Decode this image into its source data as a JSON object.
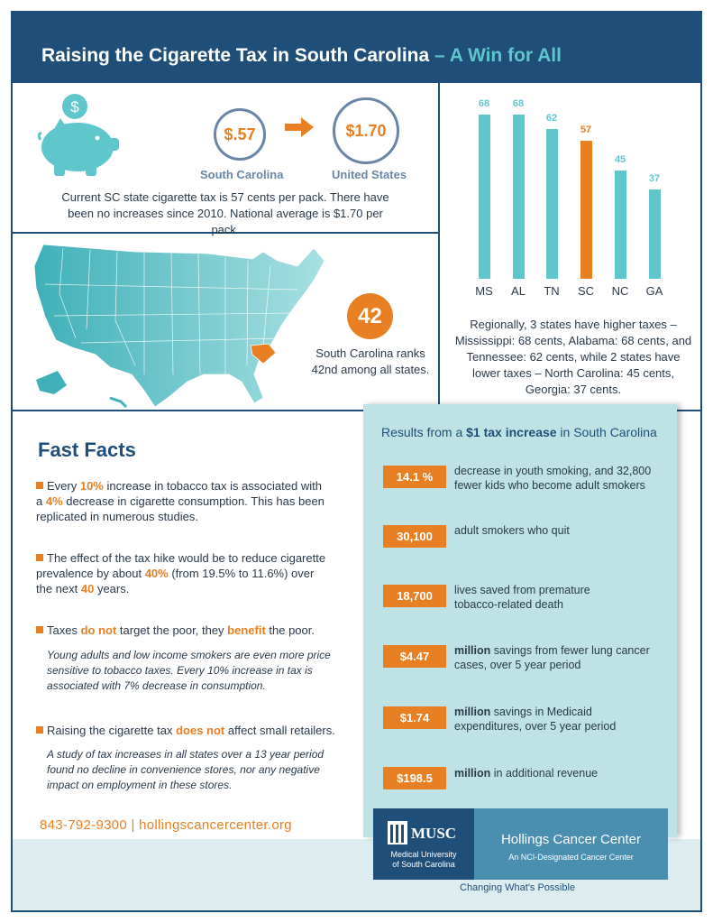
{
  "header": {
    "title": "Raising the Cigarette Tax in South Carolina",
    "title_accent": " – A Win for All"
  },
  "tax_compare": {
    "sc_value": "$.57",
    "sc_label": "South Carolina",
    "us_value": "$1.70",
    "us_label": "United States",
    "piggy_symbol": "$",
    "description": "Current SC state cigarette tax is 57 cents per pack.  There have been no increases since 2010. National average is $1.70 per pack."
  },
  "ranking": {
    "rank": "42",
    "text": "South Carolina ranks 42nd among all states."
  },
  "chart_data": {
    "type": "bar",
    "categories": [
      "MS",
      "AL",
      "TN",
      "SC",
      "NC",
      "GA"
    ],
    "values": [
      68,
      68,
      62,
      57,
      45,
      37
    ],
    "highlight": "SC",
    "colors": {
      "default": "#5fc6cc",
      "highlight": "#e87f22"
    }
  },
  "regional_note": "Regionally, 3 states have higher taxes – Mississippi: 68 cents, Alabama: 68 cents, and Tennessee: 62 cents, while 2 states have lower taxes – North Carolina: 45 cents, Georgia: 37 cents.",
  "fast_facts": {
    "title": "Fast Facts",
    "f1_a": "Every ",
    "f1_b": "10%",
    "f1_c": " increase in tobacco tax is associated with a ",
    "f1_d": "4%",
    "f1_e": " decrease in cigarette consumption.  This has been replicated in numerous studies.",
    "f2_a": "The effect of the tax hike would be to reduce cigarette prevalence by about ",
    "f2_b": "40%",
    "f2_c": " (from 19.5% to 11.6%) over the next ",
    "f2_d": "40",
    "f2_e": " years.",
    "f3_a": "Taxes ",
    "f3_b": "do not",
    "f3_c": " target the poor, they ",
    "f3_d": "benefit",
    "f3_e": " the poor.",
    "f3_note": "Young adults and low income smokers are even more price sensitive to tobacco taxes. Every 10% increase in tax is associated with 7% decrease in consumption.",
    "f4_a": "Raising the cigarette tax ",
    "f4_b": "does not",
    "f4_c": " affect small retailers.",
    "f4_note": "A study of tax increases in all states over a 13 year period found no decline in convenience stores, nor any negative impact on employment in these stores.",
    "contact": "843-792-9300 | hollingscancercenter.org"
  },
  "results": {
    "title_a": "Results from a ",
    "title_b": "$1 tax increase",
    "title_c": " in South Carolina",
    "items": [
      {
        "value": "14.1 %",
        "bold": "",
        "text": "decrease in youth smoking, and 32,800 fewer kids who become adult smokers"
      },
      {
        "value": "30,100",
        "bold": "",
        "text": "adult smokers who quit"
      },
      {
        "value": "18,700",
        "bold": "",
        "text": "lives saved from premature tobacco-related death"
      },
      {
        "value": "$4.47",
        "bold": "million",
        "text": " savings from fewer lung cancer cases, over 5 year period"
      },
      {
        "value": "$1.74",
        "bold": "million",
        "text": " savings in Medicaid expenditures, over 5 year period"
      },
      {
        "value": "$198.5",
        "bold": "million",
        "text": " in additional revenue"
      }
    ]
  },
  "footer": {
    "musc_name": "MUSC",
    "musc_sub1": "Medical University",
    "musc_sub2": "of South Carolina",
    "hcc_name": "Hollings Cancer Center",
    "hcc_sub": "An NCI-Designated Cancer Center",
    "tagline": "Changing What's Possible"
  },
  "colors": {
    "navy": "#1f4e79",
    "teal": "#5fc6cc",
    "orange": "#e87f22",
    "panel": "#bfe3e4"
  }
}
